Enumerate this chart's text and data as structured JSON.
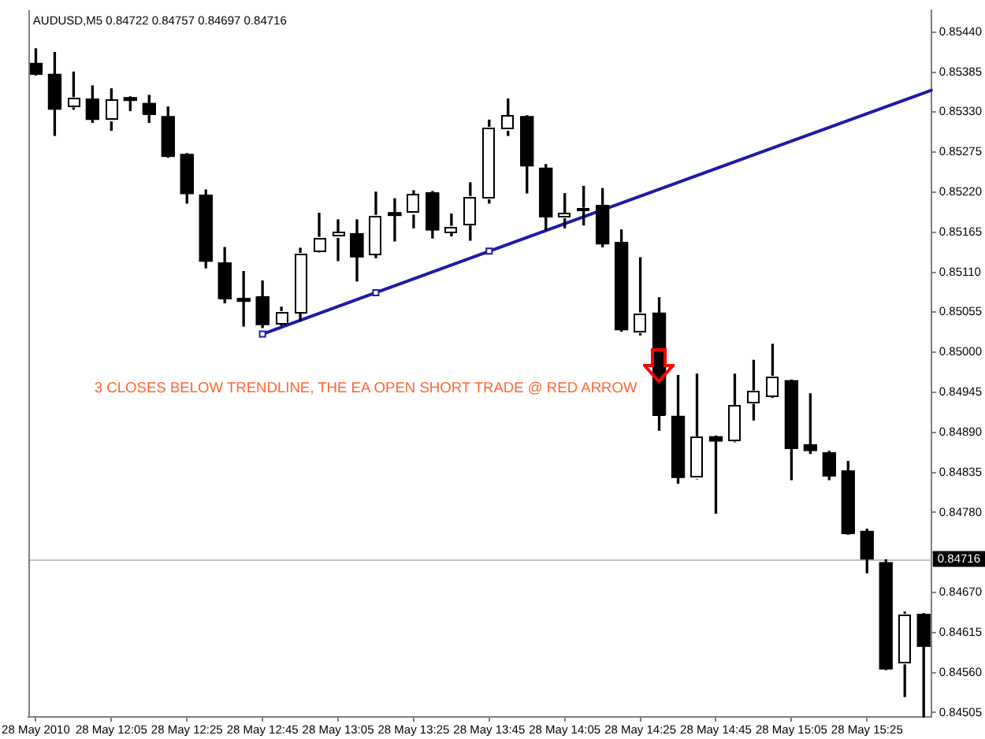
{
  "chart_data": {
    "type": "candlestick",
    "title": "AUDUSD,M5 0.84722 0.84757 0.84697 0.84716",
    "x": [
      "2010-05-28T11:45",
      "2010-05-28T11:50",
      "2010-05-28T11:55",
      "2010-05-28T12:00",
      "2010-05-28T12:05",
      "2010-05-28T12:10",
      "2010-05-28T12:15",
      "2010-05-28T12:20",
      "2010-05-28T12:25",
      "2010-05-28T12:30",
      "2010-05-28T12:35",
      "2010-05-28T12:40",
      "2010-05-28T12:45",
      "2010-05-28T12:50",
      "2010-05-28T12:55",
      "2010-05-28T13:00",
      "2010-05-28T13:05",
      "2010-05-28T13:10",
      "2010-05-28T13:15",
      "2010-05-28T13:20",
      "2010-05-28T13:25",
      "2010-05-28T13:30",
      "2010-05-28T13:35",
      "2010-05-28T13:40",
      "2010-05-28T13:45",
      "2010-05-28T13:50",
      "2010-05-28T13:55",
      "2010-05-28T14:00",
      "2010-05-28T14:05",
      "2010-05-28T14:10",
      "2010-05-28T14:15",
      "2010-05-28T14:20",
      "2010-05-28T14:25",
      "2010-05-28T14:30",
      "2010-05-28T14:35",
      "2010-05-28T14:40",
      "2010-05-28T14:45",
      "2010-05-28T14:50",
      "2010-05-28T14:55",
      "2010-05-28T15:00",
      "2010-05-28T15:05",
      "2010-05-28T15:10",
      "2010-05-28T15:15",
      "2010-05-28T15:20",
      "2010-05-28T15:25",
      "2010-05-28T15:30",
      "2010-05-28T15:35",
      "2010-05-28T15:40"
    ],
    "ohlc": [
      [
        0.85397,
        0.85417,
        0.85381,
        0.85382
      ],
      [
        0.85382,
        0.85412,
        0.85298,
        0.85334
      ],
      [
        0.85337,
        0.85385,
        0.85334,
        0.8535
      ],
      [
        0.85348,
        0.85366,
        0.85316,
        0.8532
      ],
      [
        0.85318,
        0.85362,
        0.85305,
        0.85347
      ],
      [
        0.8535,
        0.85351,
        0.85332,
        0.85346
      ],
      [
        0.85342,
        0.85353,
        0.85316,
        0.85327
      ],
      [
        0.85324,
        0.85337,
        0.85268,
        0.85269
      ],
      [
        0.85272,
        0.85273,
        0.85205,
        0.85218
      ],
      [
        0.85216,
        0.85223,
        0.85116,
        0.85125
      ],
      [
        0.85123,
        0.85144,
        0.85068,
        0.85074
      ],
      [
        0.85074,
        0.85111,
        0.85036,
        0.8507
      ],
      [
        0.85076,
        0.85098,
        0.85034,
        0.85038
      ],
      [
        0.85039,
        0.85062,
        0.85037,
        0.85056
      ],
      [
        0.85054,
        0.85143,
        0.85043,
        0.85136
      ],
      [
        0.85139,
        0.85191,
        0.85138,
        0.85158
      ],
      [
        0.85158,
        0.85182,
        0.85126,
        0.85165
      ],
      [
        0.85163,
        0.85182,
        0.85098,
        0.85131
      ],
      [
        0.85134,
        0.8522,
        0.8513,
        0.85188
      ],
      [
        0.85192,
        0.85211,
        0.85153,
        0.85188
      ],
      [
        0.8519,
        0.85222,
        0.85171,
        0.85217
      ],
      [
        0.85219,
        0.85221,
        0.85157,
        0.85168
      ],
      [
        0.85165,
        0.8519,
        0.8516,
        0.85173
      ],
      [
        0.85175,
        0.85233,
        0.85154,
        0.85214
      ],
      [
        0.85211,
        0.85319,
        0.85205,
        0.85309
      ],
      [
        0.85305,
        0.85348,
        0.85298,
        0.85325
      ],
      [
        0.85324,
        0.85325,
        0.85219,
        0.85256
      ],
      [
        0.85253,
        0.85258,
        0.85168,
        0.85186
      ],
      [
        0.85185,
        0.85218,
        0.85171,
        0.85191
      ],
      [
        0.85195,
        0.85228,
        0.85175,
        0.85198
      ],
      [
        0.85202,
        0.85225,
        0.85145,
        0.85149
      ],
      [
        0.85151,
        0.85168,
        0.85029,
        0.85031
      ],
      [
        0.85027,
        0.8513,
        0.85024,
        0.85054
      ],
      [
        0.85054,
        0.85075,
        0.84893,
        0.84914
      ],
      [
        0.84912,
        0.84968,
        0.8482,
        0.84828
      ],
      [
        0.84827,
        0.8497,
        0.84826,
        0.84884
      ],
      [
        0.84884,
        0.84885,
        0.84779,
        0.84878
      ],
      [
        0.84878,
        0.8497,
        0.84877,
        0.84927
      ],
      [
        0.8493,
        0.84989,
        0.84907,
        0.84947
      ],
      [
        0.84939,
        0.85011,
        0.84938,
        0.84967
      ],
      [
        0.84961,
        0.84962,
        0.84825,
        0.84868
      ],
      [
        0.84873,
        0.84943,
        0.84861,
        0.84865
      ],
      [
        0.84862,
        0.84864,
        0.84825,
        0.8483
      ],
      [
        0.84837,
        0.8485,
        0.8475,
        0.84751
      ],
      [
        0.84754,
        0.84757,
        0.84697,
        0.84716
      ],
      [
        0.84711,
        0.84715,
        0.84564,
        0.84565
      ],
      [
        0.84572,
        0.84643,
        0.84527,
        0.8464
      ],
      [
        0.8464,
        0.84641,
        0.84499,
        0.84596
      ]
    ],
    "color": "#000000",
    "colors": [
      "#000000",
      "#000000",
      "#ffffff",
      "#000000",
      "#ffffff",
      "#000000",
      "#000000",
      "#000000",
      "#000000",
      "#000000",
      "#000000",
      "#000000",
      "#000000",
      "#ffffff",
      "#ffffff",
      "#ffffff",
      "#ffffff",
      "#000000",
      "#ffffff",
      "#000000",
      "#ffffff",
      "#000000",
      "#ffffff",
      "#ffffff",
      "#ffffff",
      "#ffffff",
      "#000000",
      "#000000",
      "#ffffff",
      "#ffffff",
      "#000000",
      "#000000",
      "#ffffff",
      "#000000",
      "#000000",
      "#ffffff",
      "#000000",
      "#ffffff",
      "#ffffff",
      "#ffffff",
      "#000000",
      "#000000",
      "#000000",
      "#000000",
      "#000000",
      "#000000",
      "#ffffff",
      "#000000"
    ],
    "series": [
      {
        "type": "line",
        "color": "#1c1ca8",
        "marker": "square",
        "x": [
          "2010-05-28T12:45",
          "2010-05-28T13:15",
          "2010-05-28T13:45"
        ],
        "values": [
          0.85025,
          0.85082,
          0.85139
        ]
      },
      {
        "type": "line",
        "color": "#1c1ca8",
        "marker": "none",
        "x": [
          "2010-05-28T13:45",
          "2010-05-28T15:42"
        ],
        "values": [
          0.85139,
          0.8536
        ]
      }
    ],
    "xlim": [
      "2010-05-28T11:43",
      "2010-05-28T15:42"
    ],
    "xticks": [
      {
        "value": "2010-05-28T11:45",
        "label": "28 May 2010"
      },
      {
        "value": "2010-05-28T12:05",
        "label": "28 May 12:05"
      },
      {
        "value": "2010-05-28T12:25",
        "label": "28 May 12:25"
      },
      {
        "value": "2010-05-28T12:45",
        "label": "28 May 12:45"
      },
      {
        "value": "2010-05-28T13:05",
        "label": "28 May 13:05"
      },
      {
        "value": "2010-05-28T13:25",
        "label": "28 May 13:25"
      },
      {
        "value": "2010-05-28T13:45",
        "label": "28 May 13:45"
      },
      {
        "value": "2010-05-28T14:05",
        "label": "28 May 14:05"
      },
      {
        "value": "2010-05-28T14:25",
        "label": "28 May 14:25"
      },
      {
        "value": "2010-05-28T14:45",
        "label": "28 May 14:45"
      },
      {
        "value": "2010-05-28T15:05",
        "label": "28 May 15:05"
      },
      {
        "value": "2010-05-28T15:25",
        "label": "28 May 15:25"
      }
    ],
    "ylim": [
      0.84499,
      0.8547
    ],
    "yticks": [
      {
        "value": 0.8544,
        "label": "0.85440"
      },
      {
        "value": 0.85385,
        "label": "0.85385"
      },
      {
        "value": 0.8533,
        "label": "0.85330"
      },
      {
        "value": 0.85275,
        "label": "0.85275"
      },
      {
        "value": 0.8522,
        "label": "0.85220"
      },
      {
        "value": 0.85165,
        "label": "0.85165"
      },
      {
        "value": 0.8511,
        "label": "0.85110"
      },
      {
        "value": 0.85055,
        "label": "0.85055"
      },
      {
        "value": 0.85,
        "label": "0.85000"
      },
      {
        "value": 0.84945,
        "label": "0.84945"
      },
      {
        "value": 0.8489,
        "label": "0.84890"
      },
      {
        "value": 0.84835,
        "label": "0.84835"
      },
      {
        "value": 0.8478,
        "label": "0.84780"
      },
      {
        "value": 0.84725,
        "label": null
      },
      {
        "value": 0.8467,
        "label": "0.84670"
      },
      {
        "value": 0.84615,
        "label": "0.84615"
      },
      {
        "value": 0.8456,
        "label": "0.84560"
      },
      {
        "value": 0.84505,
        "label": "0.84505"
      }
    ],
    "ref_lines": [
      {
        "axis": "y",
        "value": 0.84716,
        "label": "0.84716",
        "color": "#c0c0c0"
      }
    ],
    "annotations": [
      {
        "text": "3 CLOSES BELOW TRENDLINE, THE EA OPEN SHORT TRADE @ RED ARROW",
        "x": "2010-05-28T14:30",
        "y": 0.84961
      }
    ]
  }
}
